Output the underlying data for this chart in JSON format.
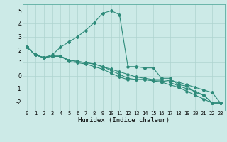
{
  "title": "",
  "xlabel": "Humidex (Indice chaleur)",
  "background_color": "#cceae7",
  "grid_color": "#aed4d0",
  "line_color": "#2e8b7a",
  "xlim": [
    -0.5,
    23.5
  ],
  "ylim": [
    -2.7,
    5.5
  ],
  "yticks": [
    -2,
    -1,
    0,
    1,
    2,
    3,
    4,
    5
  ],
  "xticks": [
    0,
    1,
    2,
    3,
    4,
    5,
    6,
    7,
    8,
    9,
    10,
    11,
    12,
    13,
    14,
    15,
    16,
    17,
    18,
    19,
    20,
    21,
    22,
    23
  ],
  "line1_x": [
    0,
    1,
    2,
    3,
    4,
    5,
    6,
    7,
    8,
    9,
    10,
    11,
    12,
    13,
    14,
    15,
    16,
    17,
    18,
    19,
    20,
    21,
    22,
    23
  ],
  "line1_y": [
    2.2,
    1.6,
    1.4,
    1.6,
    2.2,
    2.6,
    3.0,
    3.5,
    4.1,
    4.8,
    5.0,
    4.7,
    0.7,
    0.7,
    0.6,
    0.6,
    -0.2,
    -0.2,
    -0.7,
    -0.8,
    -1.3,
    -1.5,
    -2.1,
    -2.1
  ],
  "line2_x": [
    0,
    1,
    2,
    3,
    4,
    5,
    6,
    7,
    8,
    9,
    10,
    11,
    12,
    13,
    14,
    15,
    16,
    17,
    18,
    19,
    20,
    21,
    22,
    23
  ],
  "line2_y": [
    2.2,
    1.6,
    1.4,
    1.5,
    1.5,
    1.2,
    1.1,
    1.0,
    0.9,
    0.7,
    0.5,
    0.3,
    0.1,
    -0.1,
    -0.2,
    -0.3,
    -0.3,
    -0.4,
    -0.5,
    -0.7,
    -0.9,
    -1.1,
    -1.3,
    -2.1
  ],
  "line3_x": [
    0,
    1,
    2,
    3,
    4,
    5,
    6,
    7,
    8,
    9,
    10,
    11,
    12,
    13,
    14,
    15,
    16,
    17,
    18,
    19,
    20,
    21,
    22,
    23
  ],
  "line3_y": [
    2.2,
    1.6,
    1.4,
    1.5,
    1.5,
    1.2,
    1.1,
    1.0,
    0.9,
    0.7,
    0.4,
    0.1,
    -0.2,
    -0.3,
    -0.3,
    -0.4,
    -0.4,
    -0.5,
    -0.8,
    -1.0,
    -1.2,
    -1.5,
    -2.1,
    -2.1
  ],
  "line4_x": [
    0,
    1,
    2,
    3,
    4,
    5,
    6,
    7,
    8,
    9,
    10,
    11,
    12,
    13,
    14,
    15,
    16,
    17,
    18,
    19,
    20,
    21,
    22,
    23
  ],
  "line4_y": [
    2.2,
    1.6,
    1.4,
    1.5,
    1.5,
    1.1,
    1.0,
    0.9,
    0.7,
    0.5,
    0.2,
    -0.1,
    -0.3,
    -0.3,
    -0.3,
    -0.4,
    -0.5,
    -0.7,
    -0.9,
    -1.2,
    -1.5,
    -1.8,
    -2.1,
    -2.1
  ],
  "tick_fontsize": 5,
  "xlabel_fontsize": 6.5,
  "marker_size": 2.0,
  "linewidth": 0.8
}
